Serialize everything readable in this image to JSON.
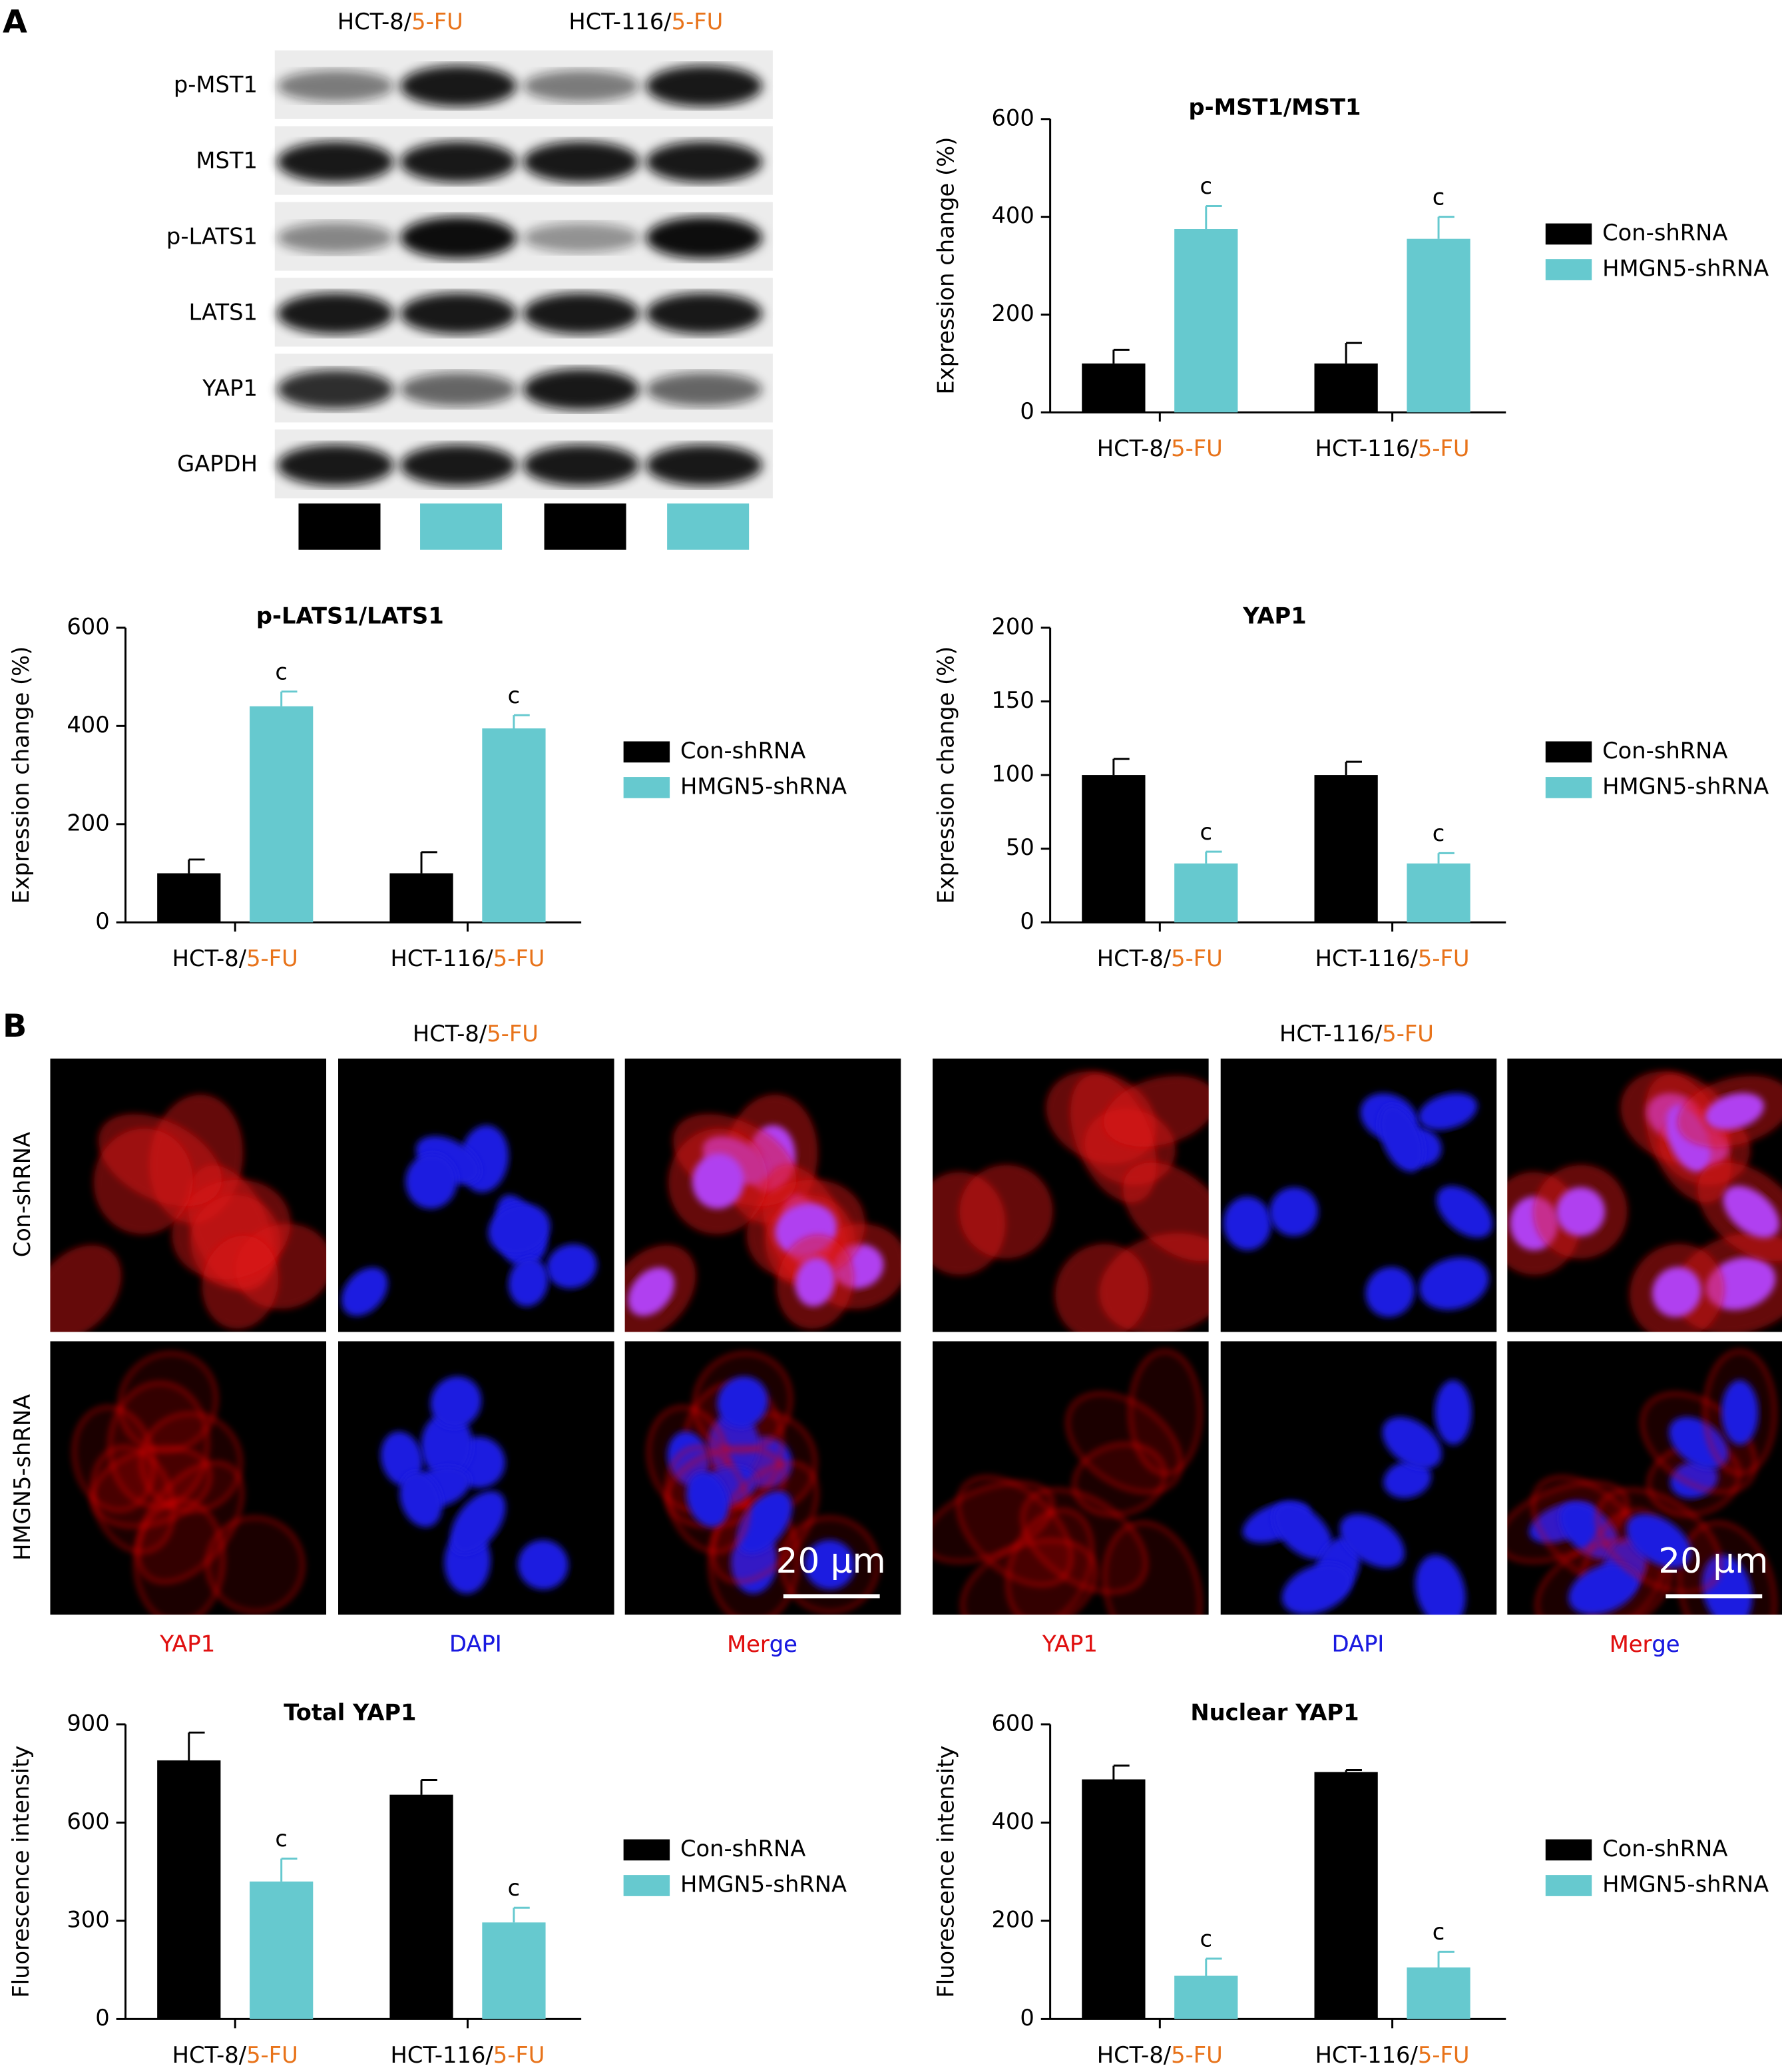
{
  "panel_labels": [
    "A",
    "B"
  ],
  "highlight_color": "#e8731a",
  "blot": {
    "headers": [
      [
        "HCT-8/",
        "5-FU"
      ],
      [
        "HCT-116/",
        "5-FU"
      ]
    ],
    "rows": [
      "p-MST1",
      "MST1",
      "p-LATS1",
      "LATS1",
      "YAP1",
      "GAPDH"
    ]
  },
  "micrographs": {
    "headers": [
      [
        "HCT-8/",
        "5-FU"
      ],
      [
        "HCT-116/",
        "5-FU"
      ]
    ],
    "rows": [
      "Con-shRNA",
      "HMGN5-shRNA"
    ],
    "channels": [
      "YAP1",
      "DAPI",
      [
        "Mer",
        "ge"
      ]
    ],
    "channel_colors": [
      "#e01010",
      "#1a1ae0"
    ],
    "scale_bar": "20 μm"
  },
  "chart_data": [
    {
      "type": "bar",
      "title": "p-MST1/MST1",
      "ylabel": "Expression change (%)",
      "categories": [
        [
          "HCT-8/",
          "5-FU"
        ],
        [
          "HCT-116/",
          "5-FU"
        ]
      ],
      "series": [
        {
          "name": "Con-shRNA",
          "color": "#000000",
          "values": [
            100,
            100
          ],
          "errors": [
            28,
            42
          ]
        },
        {
          "name": "HMGN5-shRNA",
          "color": "#66c9cf",
          "values": [
            375,
            355
          ],
          "errors": [
            47,
            45
          ],
          "annotations": [
            "c",
            "c"
          ]
        }
      ],
      "ylim": [
        0,
        600
      ],
      "yticks": [
        0,
        200,
        400,
        600
      ],
      "legend": "right"
    },
    {
      "type": "bar",
      "title": "p-LATS1/LATS1",
      "ylabel": "Expression change (%)",
      "categories": [
        [
          "HCT-8/",
          "5-FU"
        ],
        [
          "HCT-116/",
          "5-FU"
        ]
      ],
      "series": [
        {
          "name": "Con-shRNA",
          "color": "#000000",
          "values": [
            100,
            100
          ],
          "errors": [
            28,
            43
          ]
        },
        {
          "name": "HMGN5-shRNA",
          "color": "#66c9cf",
          "values": [
            440,
            395
          ],
          "errors": [
            30,
            27
          ],
          "annotations": [
            "c",
            "c"
          ]
        }
      ],
      "ylim": [
        0,
        600
      ],
      "yticks": [
        0,
        200,
        400,
        600
      ],
      "legend": "right"
    },
    {
      "type": "bar",
      "title": "YAP1",
      "ylabel": "Expression change (%)",
      "categories": [
        [
          "HCT-8/",
          "5-FU"
        ],
        [
          "HCT-116/",
          "5-FU"
        ]
      ],
      "series": [
        {
          "name": "Con-shRNA",
          "color": "#000000",
          "values": [
            100,
            100
          ],
          "errors": [
            11,
            9
          ]
        },
        {
          "name": "HMGN5-shRNA",
          "color": "#66c9cf",
          "values": [
            40,
            40
          ],
          "errors": [
            8,
            7
          ],
          "annotations": [
            "c",
            "c"
          ]
        }
      ],
      "ylim": [
        0,
        200
      ],
      "yticks": [
        0,
        50,
        100,
        150,
        200
      ],
      "legend": "right"
    },
    {
      "type": "bar",
      "title": "Total YAP1",
      "ylabel": "Fluorescence intensity",
      "categories": [
        [
          "HCT-8/",
          "5-FU"
        ],
        [
          "HCT-116/",
          "5-FU"
        ]
      ],
      "series": [
        {
          "name": "Con-shRNA",
          "color": "#000000",
          "values": [
            790,
            685
          ],
          "errors": [
            85,
            45
          ]
        },
        {
          "name": "HMGN5-shRNA",
          "color": "#66c9cf",
          "values": [
            420,
            295
          ],
          "errors": [
            70,
            45
          ],
          "annotations": [
            "c",
            "c"
          ]
        }
      ],
      "ylim": [
        0,
        900
      ],
      "yticks": [
        0,
        300,
        600,
        900
      ],
      "legend": "right"
    },
    {
      "type": "bar",
      "title": "Nuclear YAP1",
      "ylabel": "Fluorescence intensity",
      "categories": [
        [
          "HCT-8/",
          "5-FU"
        ],
        [
          "HCT-116/",
          "5-FU"
        ]
      ],
      "series": [
        {
          "name": "Con-shRNA",
          "color": "#000000",
          "values": [
            488,
            503
          ],
          "errors": [
            28,
            4
          ]
        },
        {
          "name": "HMGN5-shRNA",
          "color": "#66c9cf",
          "values": [
            88,
            105
          ],
          "errors": [
            35,
            32
          ],
          "annotations": [
            "c",
            "c"
          ]
        }
      ],
      "ylim": [
        0,
        600
      ],
      "yticks": [
        0,
        200,
        400,
        600
      ],
      "legend": "right"
    }
  ]
}
